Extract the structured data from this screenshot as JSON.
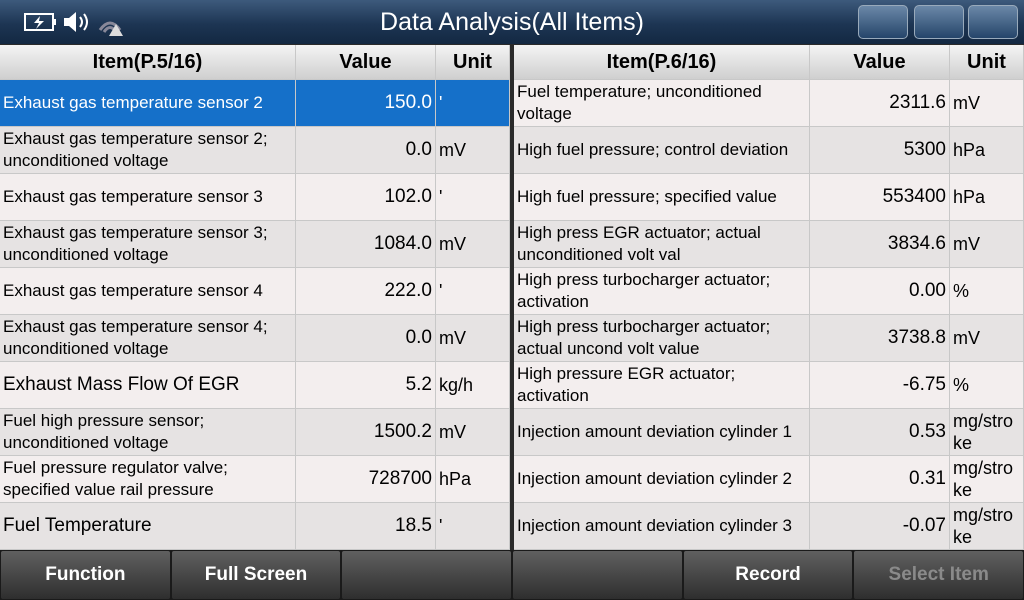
{
  "header": {
    "title": "Data Analysis(All Items)"
  },
  "left_table": {
    "columns": [
      "Item(P.5/16)",
      "Value",
      "Unit"
    ],
    "rows": [
      [
        "Exhaust gas temperature sensor 2",
        "150.0",
        "'"
      ],
      [
        "Exhaust gas temperature sensor 2; unconditioned voltage",
        "0.0",
        "mV"
      ],
      [
        "Exhaust gas temperature sensor 3",
        "102.0",
        "'"
      ],
      [
        "Exhaust gas temperature sensor 3; unconditioned voltage",
        "1084.0",
        "mV"
      ],
      [
        "Exhaust gas temperature sensor 4",
        "222.0",
        "'"
      ],
      [
        "Exhaust gas temperature sensor 4; unconditioned voltage",
        "0.0",
        "mV"
      ],
      [
        "Exhaust Mass Flow Of EGR",
        "5.2",
        "kg/h"
      ],
      [
        "Fuel high pressure sensor; unconditioned voltage",
        "1500.2",
        "mV"
      ],
      [
        "Fuel pressure regulator valve; specified value rail pressure",
        "728700",
        "hPa"
      ],
      [
        "Fuel Temperature",
        "18.5",
        "'"
      ]
    ]
  },
  "right_table": {
    "columns": [
      "Item(P.6/16)",
      "Value",
      "Unit"
    ],
    "rows": [
      [
        "Fuel temperature; unconditioned voltage",
        "2311.6",
        "mV"
      ],
      [
        "High fuel pressure; control deviation",
        "5300",
        "hPa"
      ],
      [
        "High fuel pressure; specified value",
        "553400",
        "hPa"
      ],
      [
        "High press EGR actuator; actual unconditioned volt val",
        "3834.6",
        "mV"
      ],
      [
        "High press turbocharger actuator; activation",
        "0.00",
        "%"
      ],
      [
        "High press turbocharger actuator; actual uncond volt value",
        "3738.8",
        "mV"
      ],
      [
        "High pressure EGR actuator; activation",
        "-6.75",
        "%"
      ],
      [
        "Injection amount deviation cylinder 1",
        "0.53",
        "mg/stroke"
      ],
      [
        "Injection amount deviation cylinder 2",
        "0.31",
        "mg/stroke"
      ],
      [
        "Injection amount deviation cylinder 3",
        "-0.07",
        "mg/stroke"
      ]
    ]
  },
  "buttons": {
    "function": "Function",
    "full_screen": "Full Screen",
    "record": "Record",
    "select_item": "Select Item"
  }
}
